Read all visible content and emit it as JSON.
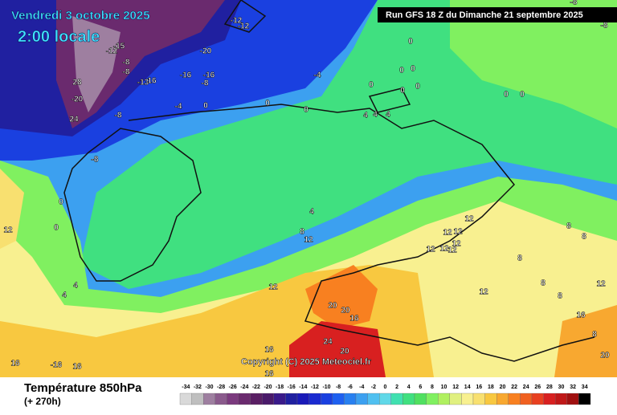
{
  "header": {
    "date": "Vendredi 3 octobre 2025",
    "time": "2:00 locale",
    "run": "Run GFS 18 Z du Dimanche 21 septembre 2025"
  },
  "map": {
    "labels": [
      "-12",
      "-12",
      "-12",
      "-15",
      "-20",
      "-8",
      "-8",
      "-13",
      "16",
      "-16",
      "-16",
      "-8",
      "28",
      "-20",
      "24",
      "-8",
      "-4",
      "0",
      "0",
      "0",
      "-4",
      "0",
      "0",
      "0",
      "0",
      "0",
      "0",
      "0",
      "0",
      "4",
      "4",
      "4",
      "-8",
      "0",
      "0",
      "4",
      "8",
      "12",
      "12",
      "4",
      "4",
      "12",
      "12",
      "12",
      "12",
      "12",
      "12",
      "12",
      "12",
      "12",
      "8",
      "8",
      "8",
      "8",
      "8",
      "12",
      "16",
      "8",
      "20",
      "20",
      "20",
      "16",
      "24",
      "20",
      "16",
      "16",
      "16",
      "16",
      "-16",
      "-8",
      "-8"
    ],
    "copyright": "Copyright (C) 2025 Meteociel.fr"
  },
  "footer": {
    "title": "Température 850hPa",
    "step": "(+ 270h)",
    "scale": [
      -34,
      -32,
      -30,
      -28,
      -26,
      -24,
      -22,
      -20,
      -18,
      -16,
      -14,
      -12,
      -10,
      -8,
      -6,
      -4,
      -2,
      0,
      2,
      4,
      6,
      8,
      10,
      12,
      14,
      16,
      18,
      20,
      22,
      24,
      26,
      28,
      30,
      32,
      34
    ],
    "colors": [
      "#d9d9d9",
      "#bfbfbf",
      "#9e7fa0",
      "#8a5a8c",
      "#7b3a7e",
      "#6a2a6e",
      "#5a1f64",
      "#4a1a6a",
      "#3a1a8a",
      "#2020a0",
      "#1a1ab8",
      "#1a2ad0",
      "#1a40e0",
      "#1e60f0",
      "#2880f0",
      "#3ca0f0",
      "#50c0f0",
      "#60d8e8",
      "#40e0b0",
      "#40e080",
      "#50e060",
      "#80f060",
      "#b0f060",
      "#e0f080",
      "#f8f090",
      "#f8e070",
      "#f8c840",
      "#f8a830",
      "#f88020",
      "#f06020",
      "#e84020",
      "#d82020",
      "#c01818",
      "#a01010",
      "#000000"
    ]
  }
}
